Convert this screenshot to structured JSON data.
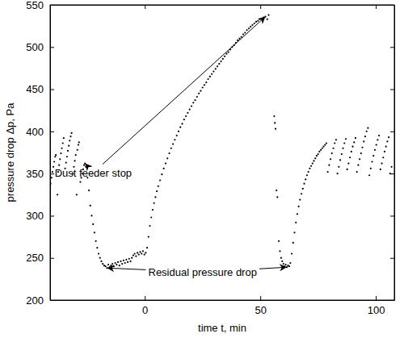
{
  "chart_data": {
    "type": "scatter",
    "x_label": "time t, min",
    "y_label": "pressure drop Δp, Pa",
    "color": "#000000",
    "marker": "dot",
    "xlim": [
      -41,
      108
    ],
    "ylim": [
      200,
      550
    ],
    "xticks": [
      0,
      50,
      100
    ],
    "yticks": [
      200,
      250,
      300,
      350,
      400,
      450,
      500,
      550
    ],
    "x": [
      -40.8,
      -40.4,
      -40,
      -39.6,
      -39.2,
      -38.8,
      -38.5,
      -37.8,
      -37.5,
      -37.1,
      -36.7,
      -36.3,
      -35.9,
      -35.5,
      -35.1,
      -34.5,
      -34.1,
      -33.7,
      -33.3,
      -32.9,
      -32.5,
      -32.1,
      -31.7,
      -31.1,
      -30.7,
      -30.3,
      -29.9,
      -29.5,
      -29.2,
      -28.8,
      -28.5,
      -27.9,
      -27.5,
      -27.1,
      -26.7,
      -26.3,
      -25.9,
      -25.5,
      -24.8,
      -24.2,
      -23.6,
      -23,
      -22.4,
      -21.8,
      -21.2,
      -20.6,
      -20,
      -19.4,
      -18.8,
      -18.2,
      -17.6,
      -17,
      -16.4,
      -15.8,
      -15.2,
      -14.6,
      -14,
      -13.4,
      -12.8,
      -12.2,
      -11.6,
      -11,
      -10.4,
      -9.8,
      -9.2,
      -8.6,
      -8,
      -7.4,
      -6.8,
      -6.2,
      -5.6,
      -5,
      -4.4,
      -3.8,
      -3.2,
      -2.6,
      -2,
      -1.4,
      -0.8,
      -0.2,
      0.4,
      1,
      1.6,
      2.2,
      2.8,
      3.4,
      4,
      4.6,
      5.2,
      5.8,
      6.6,
      7.4,
      8.2,
      9,
      9.8,
      10.6,
      11.4,
      12.2,
      13,
      13.8,
      14.6,
      15.4,
      16.2,
      17,
      17.8,
      18.6,
      19.4,
      20.2,
      21,
      21.8,
      22.6,
      23.4,
      24.2,
      25,
      25.8,
      26.6,
      27.4,
      28.2,
      29,
      29.8,
      30.6,
      31.4,
      32.2,
      33,
      33.8,
      34.6,
      35.4,
      36.2,
      37,
      37.8,
      38.6,
      39.4,
      40.2,
      41,
      41.8,
      42.6,
      43.4,
      44.2,
      45,
      45.8,
      46.6,
      47.4,
      48.2,
      49,
      49.8,
      50.6,
      51.4,
      52.2,
      53,
      53.6,
      56,
      56.3,
      56.6,
      57,
      57.4,
      58,
      58.5,
      59,
      59.5,
      60,
      60.5,
      61,
      61.5,
      62,
      62.5,
      63,
      63.6,
      64.2,
      64.8,
      65.4,
      66,
      66.6,
      67.2,
      67.8,
      68.4,
      69,
      69.6,
      70.2,
      70.8,
      71.4,
      72,
      72.6,
      73.2,
      73.8,
      74.4,
      75,
      75.6,
      76.2,
      76.8,
      77.4,
      78,
      78.6,
      79.2,
      79.8,
      80.4,
      81,
      81.6,
      82.2,
      82.8,
      83.4,
      84,
      84.6,
      85.2,
      85.8,
      86.4,
      87,
      87.6,
      88.2,
      88.8,
      89.4,
      90,
      90.6,
      91.2,
      91.8,
      92.4,
      93,
      93.6,
      94.2,
      94.8,
      95.4,
      96,
      96.6,
      97.2,
      97.8,
      98.4,
      99,
      99.6,
      100.2,
      100.8,
      101.4,
      102,
      102.6,
      103.2,
      103.8,
      104.4,
      105,
      105.6,
      106.2,
      106.8
    ],
    "values": [
      338,
      345,
      352,
      358,
      364,
      370,
      372,
      325,
      352,
      360,
      367,
      374,
      380,
      386,
      392,
      356,
      363,
      370,
      377,
      383,
      389,
      394,
      398,
      350,
      358,
      365,
      372,
      325,
      378,
      384,
      387,
      340,
      345,
      350,
      355,
      360,
      362,
      358,
      345,
      330,
      312,
      300,
      290,
      280,
      270,
      262,
      255,
      250,
      246,
      243,
      241,
      240,
      238,
      242,
      239,
      241,
      243,
      240,
      244,
      242,
      245,
      241,
      246,
      243,
      247,
      244,
      248,
      245,
      249,
      246,
      250,
      253,
      255,
      252,
      256,
      254,
      257,
      255,
      258,
      254,
      256,
      262,
      275,
      288,
      298,
      307,
      315,
      322,
      329,
      335,
      342,
      349,
      356,
      362,
      368,
      374,
      380,
      385,
      390,
      395,
      400,
      405,
      409,
      414,
      418,
      422,
      426,
      430,
      434,
      437,
      441,
      445,
      448,
      452,
      455,
      458,
      462,
      465,
      468,
      471,
      474,
      477,
      480,
      483,
      486,
      489,
      492,
      494,
      497,
      500,
      502,
      505,
      508,
      510,
      512,
      515,
      517,
      520,
      522,
      524,
      526,
      528,
      530,
      531,
      533,
      534,
      535,
      536,
      533,
      538,
      418,
      410,
      403,
      330,
      322,
      270,
      258,
      250,
      246,
      243,
      240,
      242,
      239,
      241,
      240,
      244,
      255,
      268,
      280,
      292,
      302,
      311,
      319,
      326,
      332,
      338,
      343,
      348,
      352,
      356,
      359,
      362,
      365,
      368,
      371,
      373,
      376,
      378,
      380,
      382,
      384,
      386,
      352,
      360,
      367,
      374,
      380,
      386,
      390,
      350,
      358,
      366,
      373,
      380,
      386,
      391,
      355,
      362,
      369,
      376,
      382,
      387,
      392,
      352,
      360,
      367,
      374,
      381,
      388,
      394,
      400,
      404,
      348,
      356,
      364,
      371,
      378,
      384,
      390,
      395,
      355,
      362,
      369,
      376,
      382,
      388,
      393,
      350,
      358
    ],
    "annotations": [
      {
        "text": "Dust feeder stop",
        "x": -39,
        "y": 350,
        "arrows": [
          {
            "x": -25.9,
            "y": 362
          },
          {
            "x": 52.2,
            "y": 536
          }
        ]
      },
      {
        "text": "Residual pressure drop",
        "x": 1.5,
        "y": 232,
        "arrows": [
          {
            "x": -16.4,
            "y": 238
          },
          {
            "x": 61.5,
            "y": 239
          }
        ]
      }
    ]
  }
}
